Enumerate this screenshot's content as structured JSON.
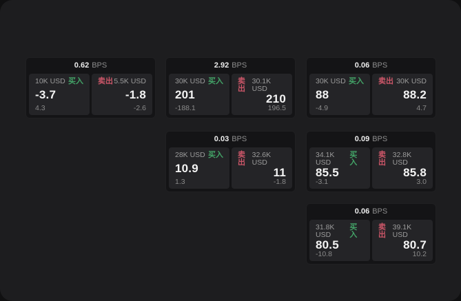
{
  "labels": {
    "bps_unit": "BPS",
    "buy": "买入",
    "sell": "卖出"
  },
  "colors": {
    "window_bg": "#1d1d1f",
    "outer_bg": "#101011",
    "card_bg": "#141416",
    "panel_bg": "#242427",
    "buy_green": "#43a367",
    "sell_red": "#cb5668"
  },
  "cards": [
    {
      "bps": "0.62",
      "buy": {
        "size": "10K USD",
        "price": "-3.7",
        "delta": "4.3"
      },
      "sell": {
        "size": "5.5K USD",
        "price": "-1.8",
        "delta": "-2.6"
      }
    },
    {
      "bps": "2.92",
      "buy": {
        "size": "30K USD",
        "price": "201",
        "delta": "-188.1"
      },
      "sell": {
        "size": "30.1K USD",
        "price": "210",
        "delta": "196.5"
      }
    },
    {
      "bps": "0.06",
      "buy": {
        "size": "30K USD",
        "price": "88",
        "delta": "-4.9"
      },
      "sell": {
        "size": "30K USD",
        "price": "88.2",
        "delta": "4.7"
      }
    },
    {
      "bps": "0.03",
      "buy": {
        "size": "28K USD",
        "price": "10.9",
        "delta": "1.3"
      },
      "sell": {
        "size": "32.6K USD",
        "price": "11",
        "delta": "-1.8"
      }
    },
    {
      "bps": "0.09",
      "buy": {
        "size": "34.1K USD",
        "price": "85.5",
        "delta": "-3.1"
      },
      "sell": {
        "size": "32.8K USD",
        "price": "85.8",
        "delta": "3.0"
      }
    },
    {
      "bps": "0.06",
      "buy": {
        "size": "31.8K USD",
        "price": "80.5",
        "delta": "-10.8"
      },
      "sell": {
        "size": "39.1K USD",
        "price": "80.7",
        "delta": "10.2"
      }
    }
  ]
}
